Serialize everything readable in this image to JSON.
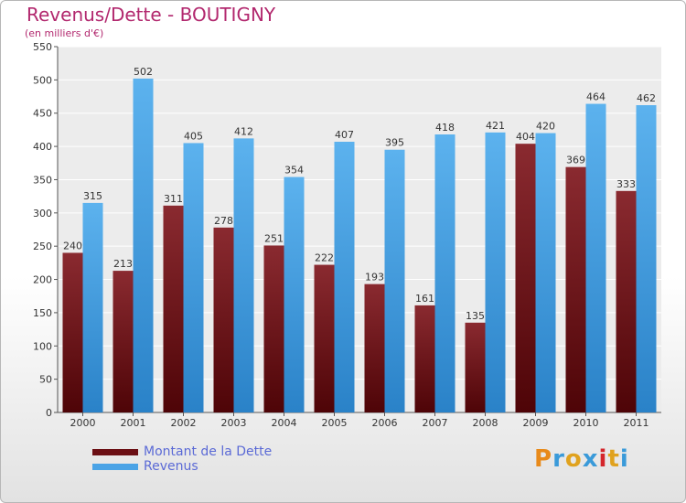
{
  "title": "Revenus/Dette - BOUTIGNY",
  "subtitle": "(en milliers d'€)",
  "colors": {
    "debt": "#7a1e24",
    "revenue": "#4aa3e6",
    "title": "#b2286e"
  },
  "legend": [
    {
      "label": "Montant de la Dette",
      "color": "#6b0f14"
    },
    {
      "label": "Revenus",
      "color": "#4aa3e6"
    }
  ],
  "logo": {
    "text": "Proxiti"
  },
  "chart_data": {
    "type": "bar",
    "categories": [
      "2000",
      "2001",
      "2002",
      "2003",
      "2004",
      "2005",
      "2006",
      "2007",
      "2008",
      "2009",
      "2010",
      "2011"
    ],
    "series": [
      {
        "name": "Montant de la Dette",
        "values": [
          240,
          213,
          311,
          278,
          251,
          222,
          193,
          161,
          135,
          404,
          369,
          333
        ]
      },
      {
        "name": "Revenus",
        "values": [
          315,
          502,
          405,
          412,
          354,
          407,
          395,
          418,
          421,
          420,
          464,
          462
        ]
      }
    ],
    "ylim": [
      0,
      550
    ],
    "yticks": [
      "0",
      "50",
      "100",
      "150",
      "200",
      "250",
      "300",
      "350",
      "400",
      "450",
      "500",
      "550"
    ],
    "grid": true,
    "legend_position": "bottom-left"
  }
}
